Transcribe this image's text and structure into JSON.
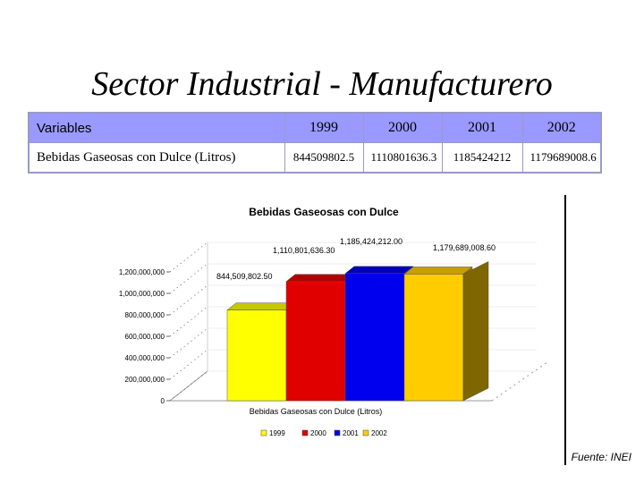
{
  "slide": {
    "title": "Sector Industrial - Manufacturero",
    "source": "Fuente: INEI"
  },
  "table": {
    "header": [
      "Variables",
      "1999",
      "2000",
      "2001",
      "2002"
    ],
    "rows": [
      {
        "label": "Bebidas Gaseosas con Dulce (Litros)",
        "values": [
          "844509802.5",
          "1110801636.3",
          "1185424212",
          "1179689008.6"
        ]
      }
    ]
  },
  "chart_data": {
    "type": "bar",
    "title": "Bebidas Gaseosas con Dulce",
    "xlabel": "Bebidas Gaseosas con Dulce (Litros)",
    "ylabel": "",
    "categories": [
      "Bebidas Gaseosas con Dulce (Litros)"
    ],
    "ylim": [
      0,
      1200000000
    ],
    "yticks": [
      "0",
      "200,000,000",
      "400,000,000",
      "600,000,000",
      "800,000,000",
      "1,000,000,000",
      "1,200,000,000"
    ],
    "series": [
      {
        "name": "1999",
        "values": [
          844509802.5
        ],
        "label": "844,509,802.50",
        "color": "#ffff00"
      },
      {
        "name": "2000",
        "values": [
          1110801636.3
        ],
        "label": "1,110,801,636.30",
        "color": "#e00000"
      },
      {
        "name": "2001",
        "values": [
          1185424212
        ],
        "label": "1,185,424,212.00",
        "color": "#0000ee"
      },
      {
        "name": "2002",
        "values": [
          1179689008.6
        ],
        "label": "1,179,689,008.60",
        "color": "#ffcc00"
      }
    ],
    "legend_position": "bottom",
    "grid": true
  }
}
